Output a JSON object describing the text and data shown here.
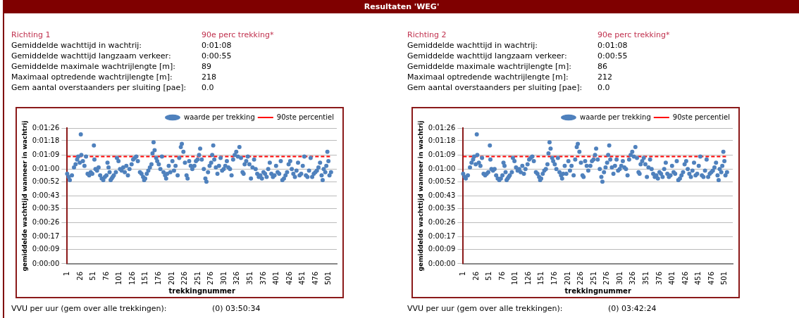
{
  "chart_data": [
    {
      "type": "other",
      "title": "Resultaten 'WEG'"
    },
    {
      "type": "other",
      "title": "Richting 1",
      "subtitle": "90e perc trekking*",
      "annotations": [
        "Gemiddelde wachttijd in wachtrij:",
        "0:01:08",
        "Gemiddelde wachttijd langzaam verkeer:",
        "0:00:55",
        "Gemiddelde maximale wachtrijlengte [m]:",
        "89",
        "Maximaal optredende wachtrijlengte [m]:",
        "218",
        "Gem aantal overstaanders per sluiting [pae]:",
        "0.0"
      ]
    },
    {
      "type": "scatter",
      "xlabel": "trekkingnummer",
      "ylabel": "gemiddelde wachttijd wanneer in wachtrij",
      "xlim": [
        1,
        516
      ],
      "xticks": [
        1,
        26,
        51,
        76,
        101,
        126,
        151,
        176,
        201,
        226,
        251,
        276,
        301,
        326,
        351,
        376,
        401,
        426,
        451,
        476,
        501
      ],
      "ylim": [
        0,
        86
      ],
      "yticks": [
        {
          "value": 0,
          "label": "0:00:00"
        },
        {
          "value": 9,
          "label": "0:00:09"
        },
        {
          "value": 17,
          "label": "0:00:17"
        },
        {
          "value": 26,
          "label": "0:00:26"
        },
        {
          "value": 35,
          "label": "0:00:35"
        },
        {
          "value": 43,
          "label": "0:00:43"
        },
        {
          "value": 52,
          "label": "0:00:52"
        },
        {
          "value": 60,
          "label": "0:01:00"
        },
        {
          "value": 69,
          "label": "0:01:09"
        },
        {
          "value": 78,
          "label": "0:01:18"
        },
        {
          "value": 86,
          "label": "0:01:26"
        }
      ],
      "grid": "y",
      "legend": "top right",
      "marker": "circle",
      "annotations": [
        "VVU per uur (gem over alle trekkingen):",
        "(0) 03:50:34"
      ],
      "series": [
        {
          "name": "waarde per trekking",
          "type": "scatter",
          "color": "#4f81bd",
          "x": [
            1,
            4,
            6,
            10,
            14,
            17,
            20,
            22,
            25,
            27,
            28,
            31,
            34,
            37,
            40,
            43,
            46,
            49,
            52,
            53,
            55,
            58,
            61,
            64,
            67,
            70,
            73,
            76,
            78,
            80,
            82,
            84,
            86,
            88,
            90,
            94,
            96,
            99,
            102,
            105,
            108,
            111,
            114,
            117,
            120,
            124,
            127,
            130,
            133,
            136,
            140,
            143,
            146,
            148,
            150,
            153,
            156,
            159,
            162,
            164,
            166,
            168,
            171,
            173,
            176,
            179,
            182,
            185,
            188,
            190,
            192,
            195,
            198,
            202,
            205,
            208,
            212,
            215,
            218,
            220,
            223,
            226,
            229,
            231,
            234,
            237,
            240,
            244,
            247,
            250,
            253,
            255,
            258,
            262,
            265,
            267,
            270,
            273,
            276,
            278,
            280,
            282,
            285,
            288,
            291,
            294,
            297,
            300,
            303,
            306,
            309,
            312,
            315,
            318,
            321,
            324,
            327,
            330,
            333,
            336,
            338,
            340,
            343,
            346,
            349,
            352,
            355,
            358,
            361,
            364,
            367,
            370,
            373,
            376,
            379,
            382,
            385,
            388,
            391,
            394,
            397,
            400,
            403,
            406,
            409,
            412,
            415,
            418,
            421,
            424,
            427,
            430,
            433,
            436,
            439,
            442,
            445,
            448,
            451,
            454,
            457,
            460,
            463,
            466,
            469,
            472,
            475,
            478,
            481,
            484,
            487,
            489,
            491,
            494,
            496,
            498,
            500,
            502,
            505
          ],
          "values": [
            57,
            55,
            53,
            56,
            61,
            63,
            66,
            68,
            64,
            82,
            69,
            65,
            62,
            68,
            57,
            56,
            58,
            57,
            75,
            66,
            60,
            59,
            61,
            56,
            54,
            53,
            55,
            56,
            64,
            61,
            58,
            53,
            54,
            55,
            56,
            58,
            67,
            65,
            60,
            59,
            61,
            58,
            62,
            56,
            60,
            63,
            66,
            67,
            68,
            65,
            58,
            57,
            55,
            53,
            54,
            57,
            59,
            61,
            63,
            70,
            77,
            72,
            67,
            65,
            63,
            60,
            68,
            58,
            56,
            54,
            57,
            62,
            58,
            65,
            59,
            62,
            56,
            67,
            74,
            76,
            71,
            64,
            56,
            54,
            65,
            62,
            60,
            62,
            65,
            66,
            69,
            73,
            66,
            60,
            54,
            52,
            58,
            62,
            64,
            69,
            75,
            66,
            61,
            57,
            62,
            67,
            59,
            60,
            62,
            65,
            61,
            60,
            56,
            66,
            69,
            71,
            68,
            74,
            67,
            58,
            57,
            63,
            65,
            68,
            63,
            54,
            61,
            66,
            60,
            57,
            55,
            56,
            54,
            58,
            57,
            55,
            60,
            64,
            57,
            55,
            56,
            62,
            58,
            57,
            65,
            53,
            54,
            56,
            58,
            63,
            65,
            60,
            57,
            55,
            59,
            64,
            56,
            57,
            62,
            68,
            56,
            55,
            59,
            67,
            55,
            57,
            58,
            59,
            61,
            64,
            56,
            53,
            60,
            58,
            62,
            71,
            65,
            56,
            58
          ]
        },
        {
          "name": "90ste percentiel",
          "type": "line",
          "color": "#ff0000",
          "line_style": "dashed",
          "marker": "none",
          "x": [
            1,
            505
          ],
          "values": [
            68,
            68
          ]
        }
      ]
    },
    {
      "type": "other",
      "title": "Richting 2",
      "subtitle": "90e perc trekking*",
      "annotations": [
        "Gemiddelde wachttijd in wachtrij:",
        "0:01:08",
        "Gemiddelde wachttijd langzaam verkeer:",
        "0:00:55",
        "Gemiddelde maximale wachtrijlengte [m]:",
        "86",
        "Maximaal optredende wachtrijlengte [m]:",
        "212",
        "Gem aantal overstaanders per sluiting [pae]:",
        "0.0"
      ]
    },
    {
      "type": "scatter",
      "xlabel": "trekkingnummer",
      "ylabel": "gemiddelde wachttijd wanneer in wachtrij",
      "xlim": [
        1,
        516
      ],
      "xticks": [
        1,
        26,
        51,
        76,
        101,
        126,
        151,
        176,
        201,
        226,
        251,
        276,
        301,
        326,
        351,
        376,
        401,
        426,
        451,
        476,
        501
      ],
      "ylim": [
        0,
        86
      ],
      "yticks": [
        {
          "value": 0,
          "label": "0:00:00"
        },
        {
          "value": 9,
          "label": "0:00:09"
        },
        {
          "value": 17,
          "label": "0:00:17"
        },
        {
          "value": 26,
          "label": "0:00:26"
        },
        {
          "value": 35,
          "label": "0:00:35"
        },
        {
          "value": 43,
          "label": "0:00:43"
        },
        {
          "value": 52,
          "label": "0:00:52"
        },
        {
          "value": 60,
          "label": "0:01:00"
        },
        {
          "value": 69,
          "label": "0:01:09"
        },
        {
          "value": 78,
          "label": "0:01:18"
        },
        {
          "value": 86,
          "label": "0:01:26"
        }
      ],
      "grid": "y",
      "legend": "top right",
      "marker": "circle",
      "annotations": [
        "VVU per uur (gem over alle trekkingen):",
        "(0) 03:42:24"
      ],
      "series": [
        {
          "name": "waarde per trekking",
          "type": "scatter",
          "color": "#4f81bd",
          "x": [
            1,
            4,
            6,
            10,
            14,
            17,
            20,
            22,
            25,
            27,
            28,
            31,
            34,
            37,
            40,
            43,
            46,
            49,
            52,
            53,
            55,
            58,
            61,
            64,
            67,
            70,
            73,
            76,
            78,
            80,
            82,
            84,
            86,
            88,
            90,
            94,
            96,
            99,
            102,
            105,
            108,
            111,
            114,
            117,
            120,
            124,
            127,
            130,
            133,
            136,
            140,
            143,
            146,
            148,
            150,
            153,
            156,
            159,
            162,
            164,
            166,
            168,
            171,
            173,
            176,
            179,
            182,
            185,
            188,
            190,
            192,
            195,
            198,
            202,
            205,
            208,
            212,
            215,
            218,
            220,
            223,
            226,
            229,
            231,
            234,
            237,
            240,
            244,
            247,
            250,
            253,
            255,
            258,
            262,
            265,
            267,
            270,
            273,
            276,
            278,
            280,
            282,
            285,
            288,
            291,
            294,
            297,
            300,
            303,
            306,
            309,
            312,
            315,
            318,
            321,
            324,
            327,
            330,
            333,
            336,
            338,
            340,
            343,
            346,
            349,
            352,
            355,
            358,
            361,
            364,
            367,
            370,
            373,
            376,
            379,
            382,
            385,
            388,
            391,
            394,
            397,
            400,
            403,
            406,
            409,
            412,
            415,
            418,
            421,
            424,
            427,
            430,
            433,
            436,
            439,
            442,
            445,
            448,
            451,
            454,
            457,
            460,
            463,
            466,
            469,
            472,
            475,
            478,
            481,
            484,
            487,
            489,
            491,
            494,
            496,
            498,
            500,
            502,
            505
          ],
          "values": [
            57,
            55,
            54,
            56,
            61,
            64,
            66,
            68,
            63,
            82,
            69,
            64,
            62,
            67,
            57,
            56,
            57,
            58,
            75,
            66,
            60,
            59,
            60,
            56,
            54,
            53,
            54,
            56,
            64,
            62,
            58,
            53,
            54,
            55,
            56,
            58,
            67,
            65,
            61,
            59,
            60,
            58,
            62,
            57,
            60,
            63,
            66,
            67,
            68,
            65,
            58,
            57,
            55,
            53,
            54,
            57,
            59,
            60,
            63,
            70,
            77,
            73,
            67,
            65,
            63,
            60,
            67,
            58,
            56,
            54,
            57,
            62,
            57,
            65,
            59,
            62,
            56,
            66,
            74,
            76,
            71,
            64,
            56,
            55,
            65,
            62,
            59,
            62,
            65,
            66,
            69,
            73,
            66,
            60,
            55,
            52,
            58,
            61,
            64,
            69,
            75,
            66,
            61,
            57,
            62,
            66,
            59,
            60,
            62,
            65,
            61,
            60,
            56,
            66,
            69,
            71,
            68,
            74,
            67,
            58,
            57,
            63,
            65,
            67,
            63,
            55,
            61,
            66,
            60,
            57,
            55,
            56,
            54,
            58,
            57,
            55,
            60,
            64,
            57,
            55,
            56,
            62,
            58,
            57,
            65,
            53,
            54,
            56,
            58,
            63,
            65,
            60,
            57,
            55,
            59,
            64,
            56,
            57,
            62,
            68,
            56,
            55,
            59,
            66,
            55,
            57,
            58,
            59,
            61,
            64,
            56,
            53,
            60,
            58,
            62,
            71,
            65,
            56,
            58
          ]
        },
        {
          "name": "90ste percentiel",
          "type": "line",
          "color": "#ff0000",
          "line_style": "dashed",
          "marker": "none",
          "x": [
            1,
            505
          ],
          "values": [
            68,
            68
          ]
        }
      ]
    }
  ]
}
